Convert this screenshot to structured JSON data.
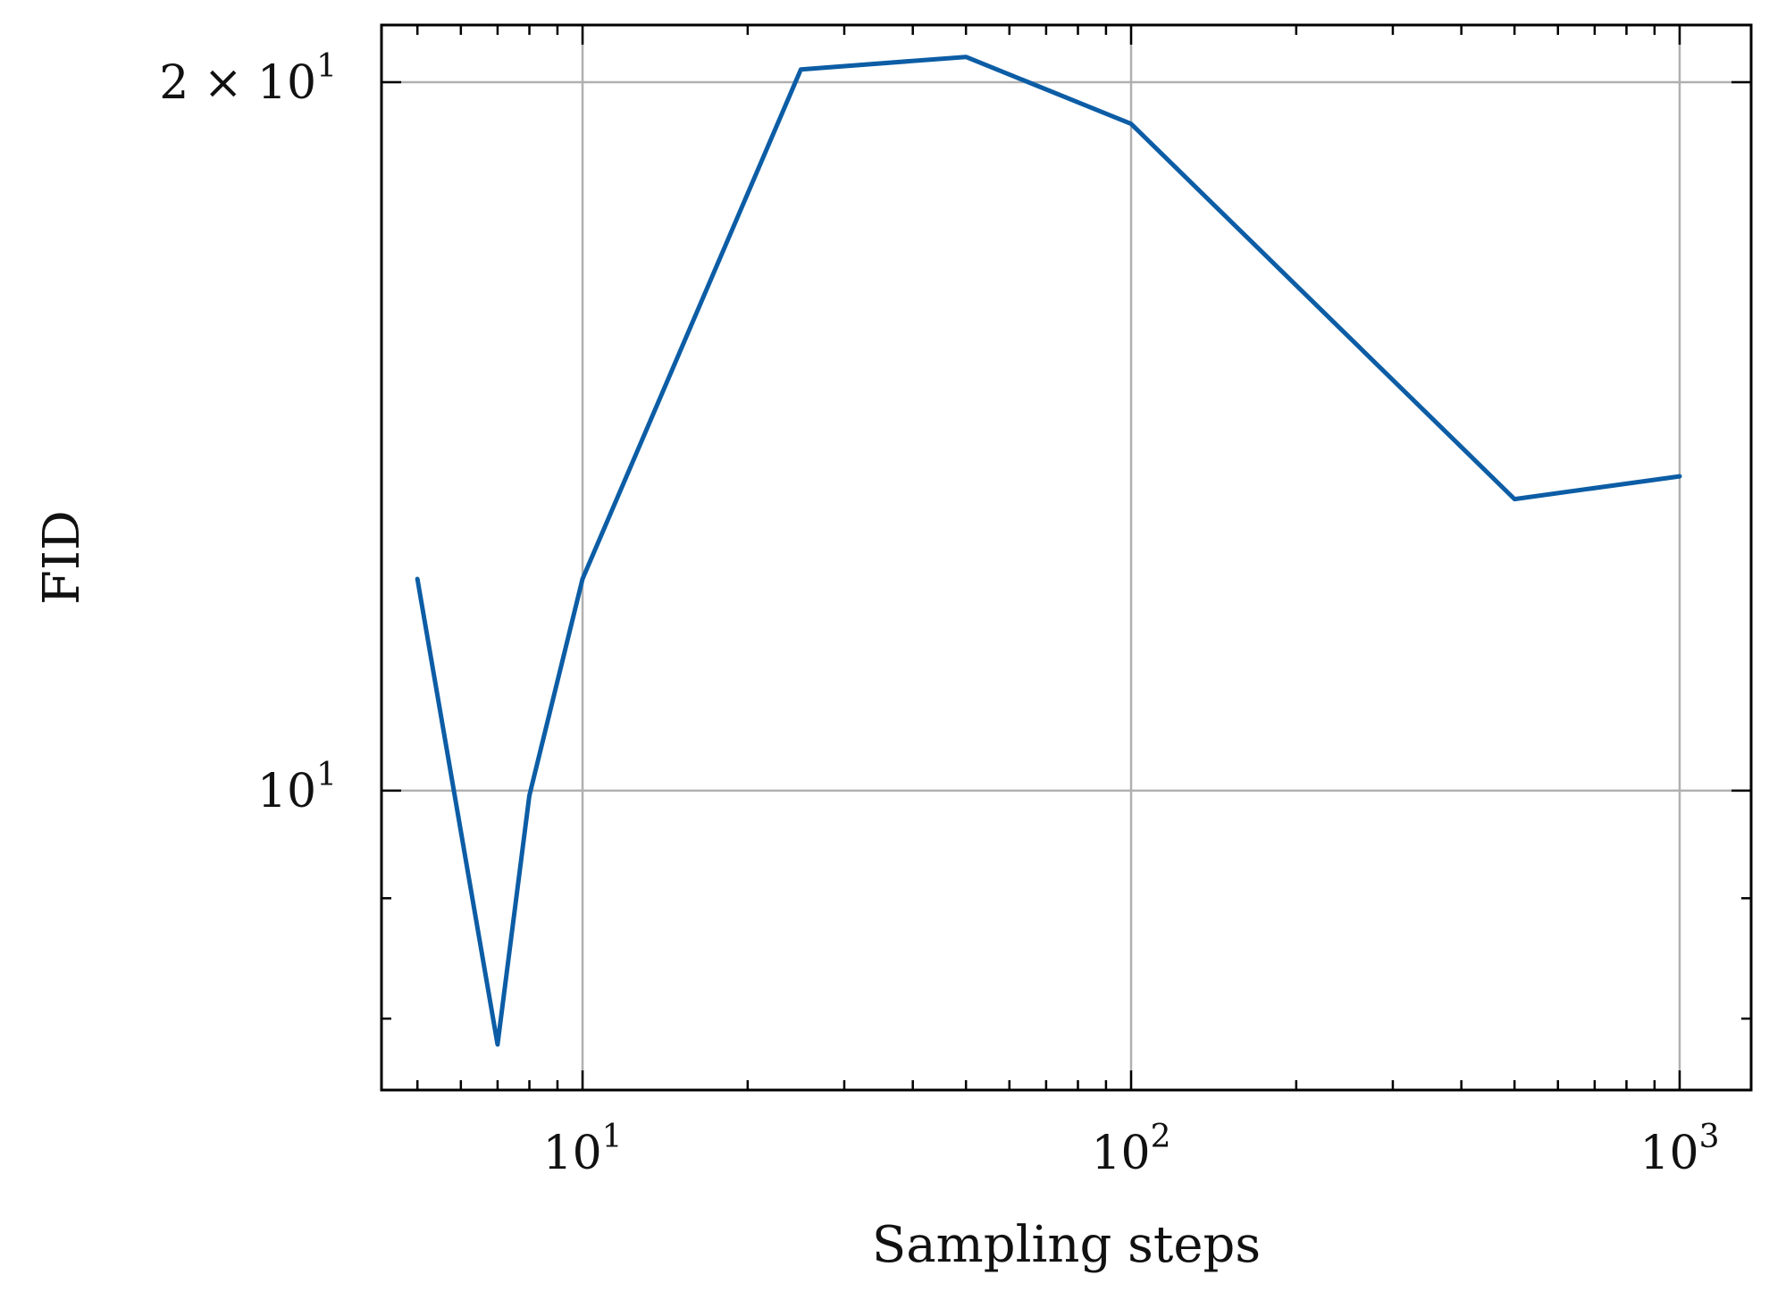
{
  "chart_data": {
    "type": "line",
    "xlabel": "Sampling steps",
    "ylabel": "FID",
    "xscale": "log",
    "yscale": "log",
    "xlim": [
      4.3,
      1350
    ],
    "ylim": [
      7.46,
      21.15
    ],
    "grid": true,
    "x_major_ticks": [
      {
        "value": 10,
        "base": "10",
        "exp": "1"
      },
      {
        "value": 100,
        "base": "10",
        "exp": "2"
      },
      {
        "value": 1000,
        "base": "10",
        "exp": "3"
      }
    ],
    "y_major_ticks": [
      {
        "value": 10,
        "base": "10",
        "exp": "1"
      },
      {
        "value": 20,
        "base": "2 × 10",
        "exp": "1"
      }
    ],
    "series": [
      {
        "color": "#0C5DA5",
        "x": [
          5,
          7,
          8,
          10,
          25,
          50,
          100,
          500,
          1000
        ],
        "y": [
          12.3,
          7.8,
          9.95,
          12.3,
          20.25,
          20.5,
          19.2,
          13.3,
          13.6
        ]
      }
    ]
  }
}
